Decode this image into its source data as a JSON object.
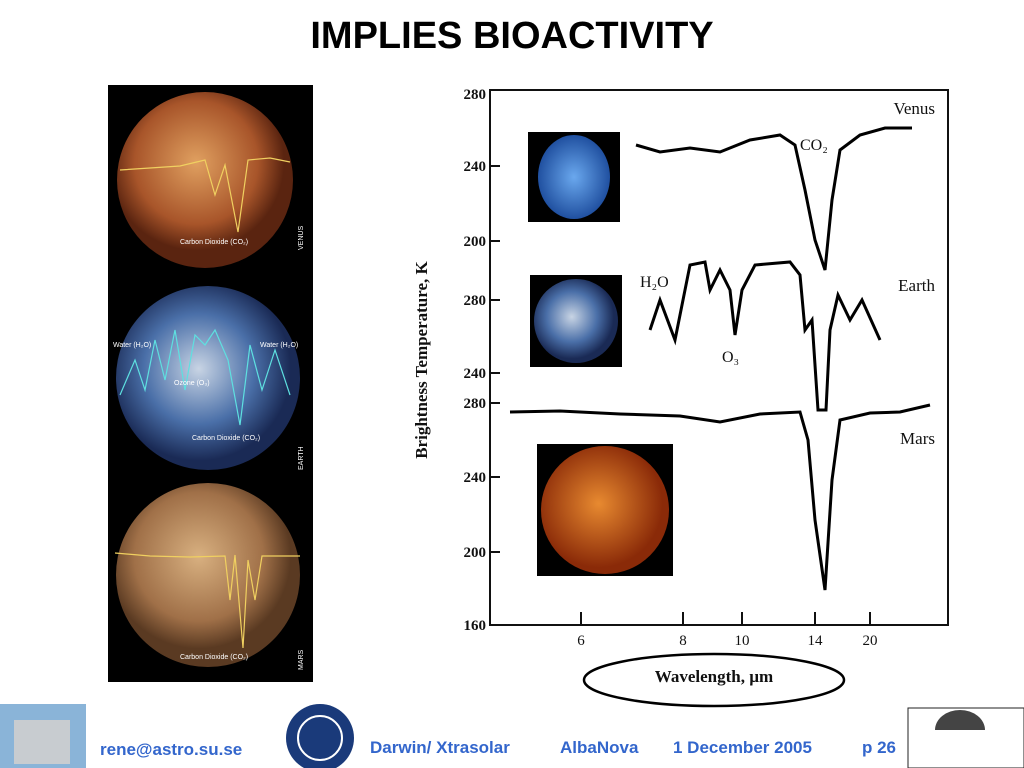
{
  "title": "IMPLIES BIOACTIVITY",
  "left_panels": [
    {
      "planet": "VENUS",
      "labels": [
        "Carbon Dioxide (CO₂)"
      ]
    },
    {
      "planet": "EARTH",
      "labels": [
        "Water (H₂O)",
        "Water (H₂O)",
        "Ozone (O₃)",
        "Carbon Dioxide (CO₂)"
      ]
    },
    {
      "planet": "MARS",
      "labels": [
        "Carbon Dioxide (CO₂)"
      ]
    }
  ],
  "figure": {
    "y_axis_label": "Brightness Temperature, K",
    "x_axis_label": "Wavelength, µm",
    "x_ticks": [
      "6",
      "8",
      "10",
      "14",
      "20"
    ],
    "panels": [
      {
        "name": "Venus",
        "molecules": [
          "CO₂"
        ],
        "y_ticks": [
          "280",
          "240",
          "200"
        ]
      },
      {
        "name": "Earth",
        "molecules": [
          "H₂O",
          "O₃"
        ],
        "y_ticks": [
          "280",
          "240"
        ]
      },
      {
        "name": "Mars",
        "molecules": [],
        "y_ticks": [
          "280",
          "240",
          "200",
          "160"
        ]
      }
    ]
  },
  "footer": {
    "email": "rene@astro.su.se",
    "project": "Darwin/ Xtrasolar",
    "place": "AlbaNova",
    "date": "1 December 2005",
    "page": "p  26"
  }
}
